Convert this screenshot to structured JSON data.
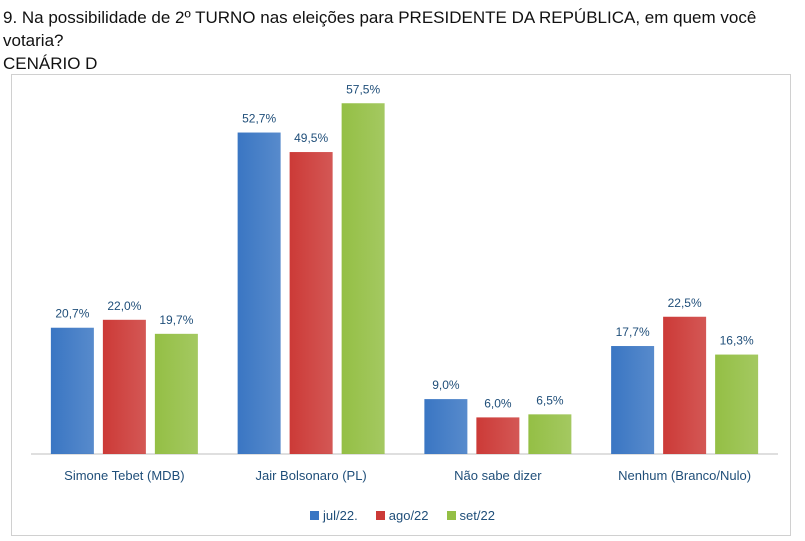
{
  "question": {
    "line1": "9. Na possibilidade de 2º TURNO nas eleições para PRESIDENTE DA REPÚBLICA, em quem você votaria?",
    "line2": "CENÁRIO D"
  },
  "colors": {
    "jul": "#3a76c3",
    "ago": "#cc3a37",
    "set": "#94bf45",
    "label_text": "#1f4e79",
    "axis": "#bfbfbf"
  },
  "chart_data": {
    "type": "bar",
    "categories": [
      "Simone Tebet (MDB)",
      "Jair Bolsonaro (PL)",
      "Não sabe dizer",
      "Nenhum (Branco/Nulo)"
    ],
    "series": [
      {
        "name": "jul/22.",
        "values": [
          20.7,
          52.7,
          9.0,
          17.7
        ],
        "labels": [
          "20,7%",
          "52,7%",
          "9,0%",
          "17,7%"
        ]
      },
      {
        "name": "ago/22",
        "values": [
          22.0,
          49.5,
          6.0,
          22.5
        ],
        "labels": [
          "22,0%",
          "49,5%",
          "6,0%",
          "22,5%"
        ]
      },
      {
        "name": "set/22",
        "values": [
          19.7,
          57.5,
          6.5,
          16.3
        ],
        "labels": [
          "19,7%",
          "57,5%",
          "6,5%",
          "16,3%"
        ]
      }
    ],
    "ylim": [
      0,
      60
    ],
    "grid": false,
    "legend": "bottom-center"
  }
}
